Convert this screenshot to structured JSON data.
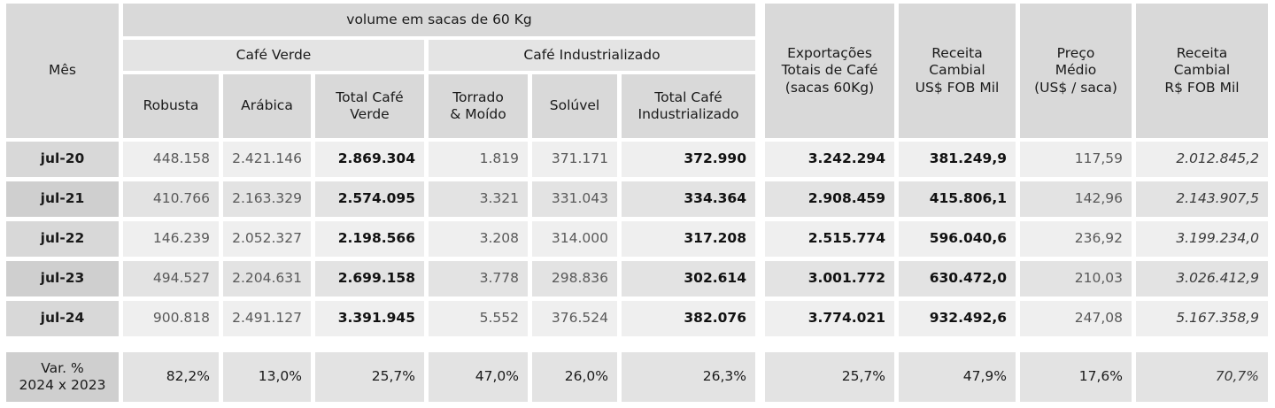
{
  "header": {
    "mes": "Mês",
    "volume": "volume em sacas de 60 Kg",
    "cafe_verde": "Café Verde",
    "cafe_industrializado": "Café Industrializado",
    "robusta": "Robusta",
    "arabica": "Arábica",
    "total_verde_1": "Total Café",
    "total_verde_2": "Verde",
    "torrado_1": "Torrado",
    "torrado_2": "& Moído",
    "soluvel": "Solúvel",
    "total_ind_1": "Total Café",
    "total_ind_2": "Industrializado",
    "export_1": "Exportações",
    "export_2": "Totais de Café",
    "export_3": "(sacas 60Kg)",
    "receita_usd_1": "Receita",
    "receita_usd_2": "Cambial",
    "receita_usd_3": "US$ FOB Mil",
    "preco_1": "Preço",
    "preco_2": "Médio",
    "preco_3": "(US$ / saca)",
    "receita_brl_1": "Receita",
    "receita_brl_2": "Cambial",
    "receita_brl_3": "R$ FOB Mil"
  },
  "rows": [
    {
      "mes": "jul-20",
      "robusta": "448.158",
      "arabica": "2.421.146",
      "total_verde": "2.869.304",
      "torrado": "1.819",
      "soluvel": "371.171",
      "total_ind": "372.990",
      "export": "3.242.294",
      "receita_usd": "381.249,9",
      "preco": "117,59",
      "receita_brl": "2.012.845,2"
    },
    {
      "mes": "jul-21",
      "robusta": "410.766",
      "arabica": "2.163.329",
      "total_verde": "2.574.095",
      "torrado": "3.321",
      "soluvel": "331.043",
      "total_ind": "334.364",
      "export": "2.908.459",
      "receita_usd": "415.806,1",
      "preco": "142,96",
      "receita_brl": "2.143.907,5"
    },
    {
      "mes": "jul-22",
      "robusta": "146.239",
      "arabica": "2.052.327",
      "total_verde": "2.198.566",
      "torrado": "3.208",
      "soluvel": "314.000",
      "total_ind": "317.208",
      "export": "2.515.774",
      "receita_usd": "596.040,6",
      "preco": "236,92",
      "receita_brl": "3.199.234,0"
    },
    {
      "mes": "jul-23",
      "robusta": "494.527",
      "arabica": "2.204.631",
      "total_verde": "2.699.158",
      "torrado": "3.778",
      "soluvel": "298.836",
      "total_ind": "302.614",
      "export": "3.001.772",
      "receita_usd": "630.472,0",
      "preco": "210,03",
      "receita_brl": "3.026.412,9"
    },
    {
      "mes": "jul-24",
      "robusta": "900.818",
      "arabica": "2.491.127",
      "total_verde": "3.391.945",
      "torrado": "5.552",
      "soluvel": "376.524",
      "total_ind": "382.076",
      "export": "3.774.021",
      "receita_usd": "932.492,6",
      "preco": "247,08",
      "receita_brl": "5.167.358,9"
    }
  ],
  "variation": {
    "label_1": "Var. %",
    "label_2": "2024 x 2023",
    "robusta": "82,2%",
    "arabica": "13,0%",
    "total_verde": "25,7%",
    "torrado": "47,0%",
    "soluvel": "26,0%",
    "total_ind": "26,3%",
    "export": "25,7%",
    "receita_usd": "47,9%",
    "preco": "17,6%",
    "receita_brl": "70,7%"
  }
}
